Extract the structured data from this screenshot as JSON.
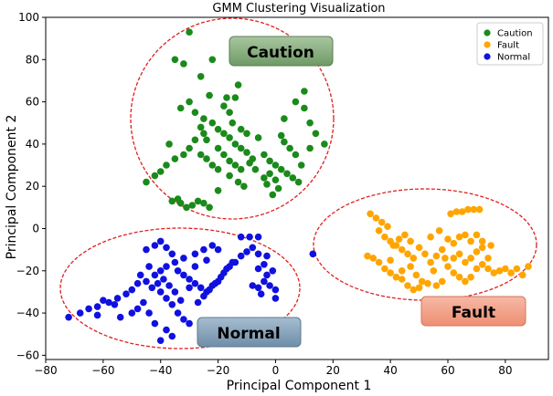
{
  "chart_data": {
    "type": "scatter",
    "title": "GMM Clustering Visualization",
    "xlabel": "Principal Component 1",
    "ylabel": "Principal Component 2",
    "xlim": [
      -80,
      95
    ],
    "ylim": [
      -62,
      100
    ],
    "xticks": [
      -80,
      -60,
      -40,
      -20,
      0,
      20,
      40,
      60,
      80
    ],
    "yticks": [
      -60,
      -40,
      -20,
      0,
      20,
      40,
      60,
      80,
      100
    ],
    "grid": false,
    "legend_position": "top-right",
    "colors": {
      "Caution": "#1a8a1a",
      "Fault": "#ffa500",
      "Normal": "#1010e0"
    },
    "series": [
      {
        "name": "Caution",
        "points": [
          [
            -30,
            93
          ],
          [
            -35,
            80
          ],
          [
            -32,
            78
          ],
          [
            -22,
            80
          ],
          [
            -26,
            72
          ],
          [
            -13,
            68
          ],
          [
            -17,
            62
          ],
          [
            -23,
            63
          ],
          [
            -30,
            60
          ],
          [
            -33,
            57
          ],
          [
            -28,
            55
          ],
          [
            -25,
            52
          ],
          [
            -22,
            50
          ],
          [
            -20,
            47
          ],
          [
            -18,
            45
          ],
          [
            -16,
            43
          ],
          [
            -14,
            40
          ],
          [
            -12,
            38
          ],
          [
            -10,
            36
          ],
          [
            -8,
            33
          ],
          [
            -25,
            45
          ],
          [
            -28,
            42
          ],
          [
            -30,
            38
          ],
          [
            -32,
            35
          ],
          [
            -35,
            33
          ],
          [
            -38,
            30
          ],
          [
            -40,
            27
          ],
          [
            -42,
            25
          ],
          [
            -45,
            22
          ],
          [
            -20,
            38
          ],
          [
            -18,
            35
          ],
          [
            -16,
            32
          ],
          [
            -14,
            30
          ],
          [
            -12,
            28
          ],
          [
            -26,
            35
          ],
          [
            -24,
            33
          ],
          [
            -22,
            30
          ],
          [
            -20,
            28
          ],
          [
            -36,
            13
          ],
          [
            -33,
            12
          ],
          [
            -31,
            10
          ],
          [
            -29,
            11
          ],
          [
            -27,
            13
          ],
          [
            -25,
            12
          ],
          [
            -23,
            10
          ],
          [
            -34,
            14
          ],
          [
            -4,
            35
          ],
          [
            -2,
            32
          ],
          [
            0,
            30
          ],
          [
            2,
            28
          ],
          [
            4,
            26
          ],
          [
            6,
            24
          ],
          [
            8,
            22
          ],
          [
            -2,
            26
          ],
          [
            0,
            23
          ],
          [
            -4,
            24
          ],
          [
            -3,
            21
          ],
          [
            2,
            44
          ],
          [
            3,
            41
          ],
          [
            5,
            38
          ],
          [
            7,
            35
          ],
          [
            9,
            30
          ],
          [
            3,
            52
          ],
          [
            7,
            60
          ],
          [
            10,
            65
          ],
          [
            10,
            57
          ],
          [
            12,
            50
          ],
          [
            14,
            45
          ],
          [
            17,
            40
          ],
          [
            12,
            38
          ],
          [
            -16,
            55
          ],
          [
            -15,
            50
          ],
          [
            -12,
            47
          ],
          [
            -10,
            45
          ],
          [
            -24,
            42
          ],
          [
            -26,
            48
          ],
          [
            -18,
            58
          ],
          [
            -14,
            62
          ],
          [
            -7,
            28
          ],
          [
            -9,
            31
          ],
          [
            -37,
            40
          ],
          [
            -11,
            20
          ],
          [
            -13,
            22
          ],
          [
            -20,
            18
          ],
          [
            -16,
            25
          ],
          [
            -1,
            16
          ],
          [
            1,
            19
          ],
          [
            -6,
            43
          ]
        ]
      },
      {
        "name": "Fault",
        "points": [
          [
            33,
            7
          ],
          [
            35,
            5
          ],
          [
            37,
            3
          ],
          [
            39,
            1
          ],
          [
            36,
            -1
          ],
          [
            38,
            -4
          ],
          [
            40,
            -6
          ],
          [
            42,
            -8
          ],
          [
            44,
            -10
          ],
          [
            46,
            -12
          ],
          [
            48,
            -14
          ],
          [
            45,
            -3
          ],
          [
            43,
            -5
          ],
          [
            41,
            -8
          ],
          [
            47,
            -6
          ],
          [
            50,
            -9
          ],
          [
            52,
            -12
          ],
          [
            54,
            -16
          ],
          [
            56,
            -13
          ],
          [
            58,
            -10
          ],
          [
            34,
            -14
          ],
          [
            36,
            -16
          ],
          [
            38,
            -19
          ],
          [
            40,
            -21
          ],
          [
            42,
            -23
          ],
          [
            44,
            -20
          ],
          [
            47,
            -18
          ],
          [
            49,
            -22
          ],
          [
            51,
            -25
          ],
          [
            53,
            -26
          ],
          [
            55,
            -20
          ],
          [
            60,
            -18
          ],
          [
            62,
            -14
          ],
          [
            64,
            -12
          ],
          [
            66,
            -16
          ],
          [
            68,
            -14
          ],
          [
            70,
            -11
          ],
          [
            72,
            -9
          ],
          [
            74,
            -14
          ],
          [
            60,
            -5
          ],
          [
            62,
            -7
          ],
          [
            64,
            -4
          ],
          [
            66,
            -3
          ],
          [
            68,
            -6
          ],
          [
            70,
            -3
          ],
          [
            72,
            -6
          ],
          [
            61,
            7
          ],
          [
            63,
            8
          ],
          [
            65,
            8
          ],
          [
            67,
            9
          ],
          [
            69,
            9
          ],
          [
            71,
            9
          ],
          [
            62,
            -21
          ],
          [
            64,
            -23
          ],
          [
            66,
            -25
          ],
          [
            68,
            -23
          ],
          [
            70,
            -19
          ],
          [
            72,
            -17
          ],
          [
            74,
            -19
          ],
          [
            76,
            -21
          ],
          [
            78,
            -20
          ],
          [
            80,
            -19
          ],
          [
            82,
            -21
          ],
          [
            84,
            -19
          ],
          [
            86,
            -22
          ],
          [
            88,
            -18
          ],
          [
            56,
            -27
          ],
          [
            58,
            -25
          ],
          [
            46,
            -27
          ],
          [
            48,
            -29
          ],
          [
            50,
            -28
          ],
          [
            44,
            -24
          ],
          [
            40,
            -15
          ],
          [
            32,
            -13
          ],
          [
            54,
            -4
          ],
          [
            57,
            -1
          ],
          [
            59,
            -14
          ],
          [
            75,
            -8
          ]
        ]
      },
      {
        "name": "Normal",
        "points": [
          [
            -72,
            -42
          ],
          [
            -68,
            -40
          ],
          [
            -65,
            -38
          ],
          [
            -62,
            -37
          ],
          [
            -58,
            -35
          ],
          [
            -55,
            -33
          ],
          [
            -52,
            -31
          ],
          [
            -50,
            -29
          ],
          [
            -48,
            -26
          ],
          [
            -45,
            -25
          ],
          [
            -42,
            -22
          ],
          [
            -40,
            -20
          ],
          [
            -38,
            -18
          ],
          [
            -35,
            -16
          ],
          [
            -32,
            -14
          ],
          [
            -28,
            -12
          ],
          [
            -25,
            -10
          ],
          [
            -22,
            -8
          ],
          [
            -45,
            -10
          ],
          [
            -42,
            -8
          ],
          [
            -40,
            -6
          ],
          [
            -38,
            -9
          ],
          [
            -36,
            -12
          ],
          [
            -34,
            -20
          ],
          [
            -32,
            -22
          ],
          [
            -30,
            -24
          ],
          [
            -28,
            -26
          ],
          [
            -26,
            -28
          ],
          [
            -24,
            -30
          ],
          [
            -22,
            -27
          ],
          [
            -20,
            -25
          ],
          [
            -18,
            -21
          ],
          [
            -16,
            -18
          ],
          [
            -14,
            -16
          ],
          [
            -12,
            -13
          ],
          [
            -10,
            -11
          ],
          [
            -8,
            -9
          ],
          [
            -6,
            -12
          ],
          [
            -12,
            -4
          ],
          [
            -9,
            -4
          ],
          [
            -6,
            -4
          ],
          [
            -40,
            -30
          ],
          [
            -38,
            -33
          ],
          [
            -36,
            -36
          ],
          [
            -34,
            -40
          ],
          [
            -32,
            -43
          ],
          [
            -30,
            -45
          ],
          [
            -38,
            -48
          ],
          [
            -36,
            -51
          ],
          [
            -40,
            -53
          ],
          [
            -42,
            -45
          ],
          [
            -44,
            -40
          ],
          [
            -46,
            -35
          ],
          [
            -48,
            -38
          ],
          [
            -50,
            -40
          ],
          [
            -54,
            -42
          ],
          [
            -56,
            -36
          ],
          [
            -60,
            -34
          ],
          [
            -62,
            -41
          ],
          [
            -27,
            -35
          ],
          [
            -25,
            -32
          ],
          [
            -23,
            -29
          ],
          [
            -21,
            -26
          ],
          [
            -19,
            -23
          ],
          [
            -17,
            -19
          ],
          [
            -15,
            -16
          ],
          [
            -20,
            -10
          ],
          [
            -24,
            -15
          ],
          [
            -28,
            -18
          ],
          [
            -30,
            -28
          ],
          [
            -33,
            -34
          ],
          [
            -35,
            -30
          ],
          [
            -37,
            -27
          ],
          [
            -39,
            -24
          ],
          [
            -41,
            -26
          ],
          [
            -43,
            -28
          ],
          [
            -4,
            -25
          ],
          [
            -2,
            -27
          ],
          [
            0,
            -29
          ],
          [
            -6,
            -28
          ],
          [
            -3,
            -22
          ],
          [
            -1,
            -20
          ],
          [
            -5,
            -31
          ],
          [
            0,
            -33
          ],
          [
            -8,
            -27
          ],
          [
            -6,
            -19
          ],
          [
            -4,
            -17
          ],
          [
            -3,
            -13
          ],
          [
            13,
            -12
          ],
          [
            -44,
            -18
          ],
          [
            -47,
            -22
          ]
        ]
      }
    ],
    "annotations": [
      "Caution",
      "Fault",
      "Normal"
    ]
  }
}
